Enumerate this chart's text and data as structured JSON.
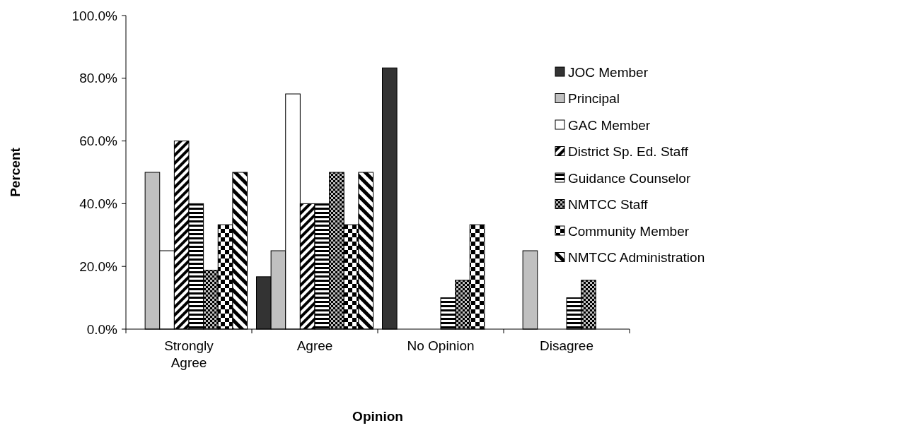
{
  "chart_data": {
    "type": "bar",
    "xlabel": "Opinion",
    "ylabel": "Percent",
    "categories": [
      "Strongly Agree",
      "Agree",
      "No Opinion",
      "Disagree"
    ],
    "ylim": [
      0,
      100
    ],
    "yticks": [
      {
        "value": 0,
        "label": "0.0%"
      },
      {
        "value": 20,
        "label": "20.0%"
      },
      {
        "value": 40,
        "label": "40.0%"
      },
      {
        "value": 60,
        "label": "60.0%"
      },
      {
        "value": 80,
        "label": "80.0%"
      },
      {
        "value": 100,
        "label": "100.0%"
      }
    ],
    "legend": "right",
    "grid": false,
    "series": [
      {
        "name": "JOC Member",
        "color": "#333333",
        "values": [
          0,
          16.7,
          83.3,
          0
        ]
      },
      {
        "name": "Principal",
        "color": "#c0c0c0",
        "values": [
          50,
          25,
          0,
          25
        ]
      },
      {
        "name": "GAC Member",
        "color": "#ffffff",
        "values": [
          25,
          75,
          0,
          0
        ]
      },
      {
        "name": "District Sp. Ed. Staff",
        "color": "#000000",
        "values": [
          60,
          40,
          0,
          0
        ]
      },
      {
        "name": "Guidance Counselor",
        "color": "#000000",
        "values": [
          40,
          40,
          10,
          10
        ]
      },
      {
        "name": "NMTCC Staff",
        "color": "#000000",
        "values": [
          18.8,
          50,
          15.6,
          15.6
        ]
      },
      {
        "name": "Community Member",
        "color": "#000000",
        "values": [
          33.3,
          33.3,
          33.3,
          0
        ]
      },
      {
        "name": "NMTCC Administration",
        "color": "#000000",
        "values": [
          50,
          50,
          0,
          0
        ]
      }
    ]
  }
}
